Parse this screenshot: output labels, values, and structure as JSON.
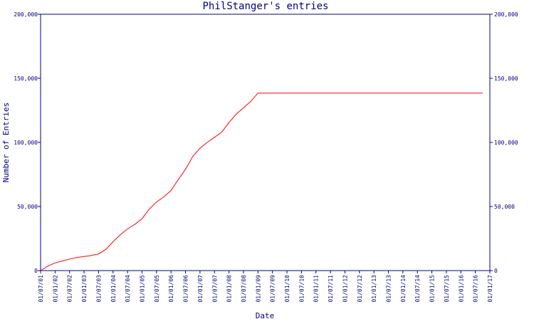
{
  "chart_data": {
    "type": "line",
    "title": "PhilStanger's entries",
    "xlabel": "Date",
    "ylabel": "Number of Entries",
    "ylim": [
      0,
      200000
    ],
    "y_ticks": [
      0,
      50000,
      100000,
      150000,
      200000
    ],
    "y_tick_labels": [
      "0",
      "50,000",
      "100,000",
      "150,000",
      "200,000"
    ],
    "x_tick_labels": [
      "01/07/01",
      "01/01/02",
      "01/07/02",
      "01/01/03",
      "01/07/03",
      "01/01/04",
      "01/07/04",
      "01/01/05",
      "01/07/05",
      "01/01/06",
      "01/07/06",
      "01/01/07",
      "01/07/07",
      "01/01/08",
      "01/07/08",
      "01/01/09",
      "01/07/09",
      "01/01/10",
      "01/07/10",
      "01/01/11",
      "01/07/11",
      "01/01/12",
      "01/07/12",
      "01/01/13",
      "01/07/13",
      "01/01/14",
      "01/07/14",
      "01/01/15",
      "01/07/15",
      "01/01/16",
      "01/07/16",
      "01/01/17"
    ],
    "series": [
      {
        "color": "#ff0000",
        "x": [
          "01/07/01",
          "01/10/01",
          "01/01/02",
          "01/04/02",
          "01/07/02",
          "01/10/02",
          "01/01/03",
          "01/04/03",
          "01/07/03",
          "01/10/03",
          "01/01/04",
          "01/04/04",
          "01/07/04",
          "01/10/04",
          "01/01/05",
          "01/04/05",
          "01/07/05",
          "01/10/05",
          "01/01/06",
          "01/04/06",
          "01/07/06",
          "01/10/06",
          "01/01/07",
          "01/04/07",
          "01/07/07",
          "01/10/07",
          "01/01/08",
          "01/04/08",
          "01/07/08",
          "01/10/08",
          "01/01/09",
          "01/04/09",
          "01/07/09",
          "01/01/10",
          "01/01/12",
          "01/01/14",
          "01/01/16",
          "01/10/16"
        ],
        "y": [
          0,
          3500,
          6000,
          7500,
          9000,
          10200,
          11000,
          11800,
          13000,
          16500,
          22500,
          28000,
          32500,
          36000,
          40500,
          48000,
          53500,
          57500,
          62500,
          71000,
          79000,
          89000,
          95500,
          100000,
          104000,
          108000,
          115500,
          122000,
          127000,
          132000,
          138500,
          138500,
          138500,
          138500,
          138500,
          138500,
          138500,
          138500
        ]
      }
    ],
    "grid": false,
    "legend": "none"
  }
}
